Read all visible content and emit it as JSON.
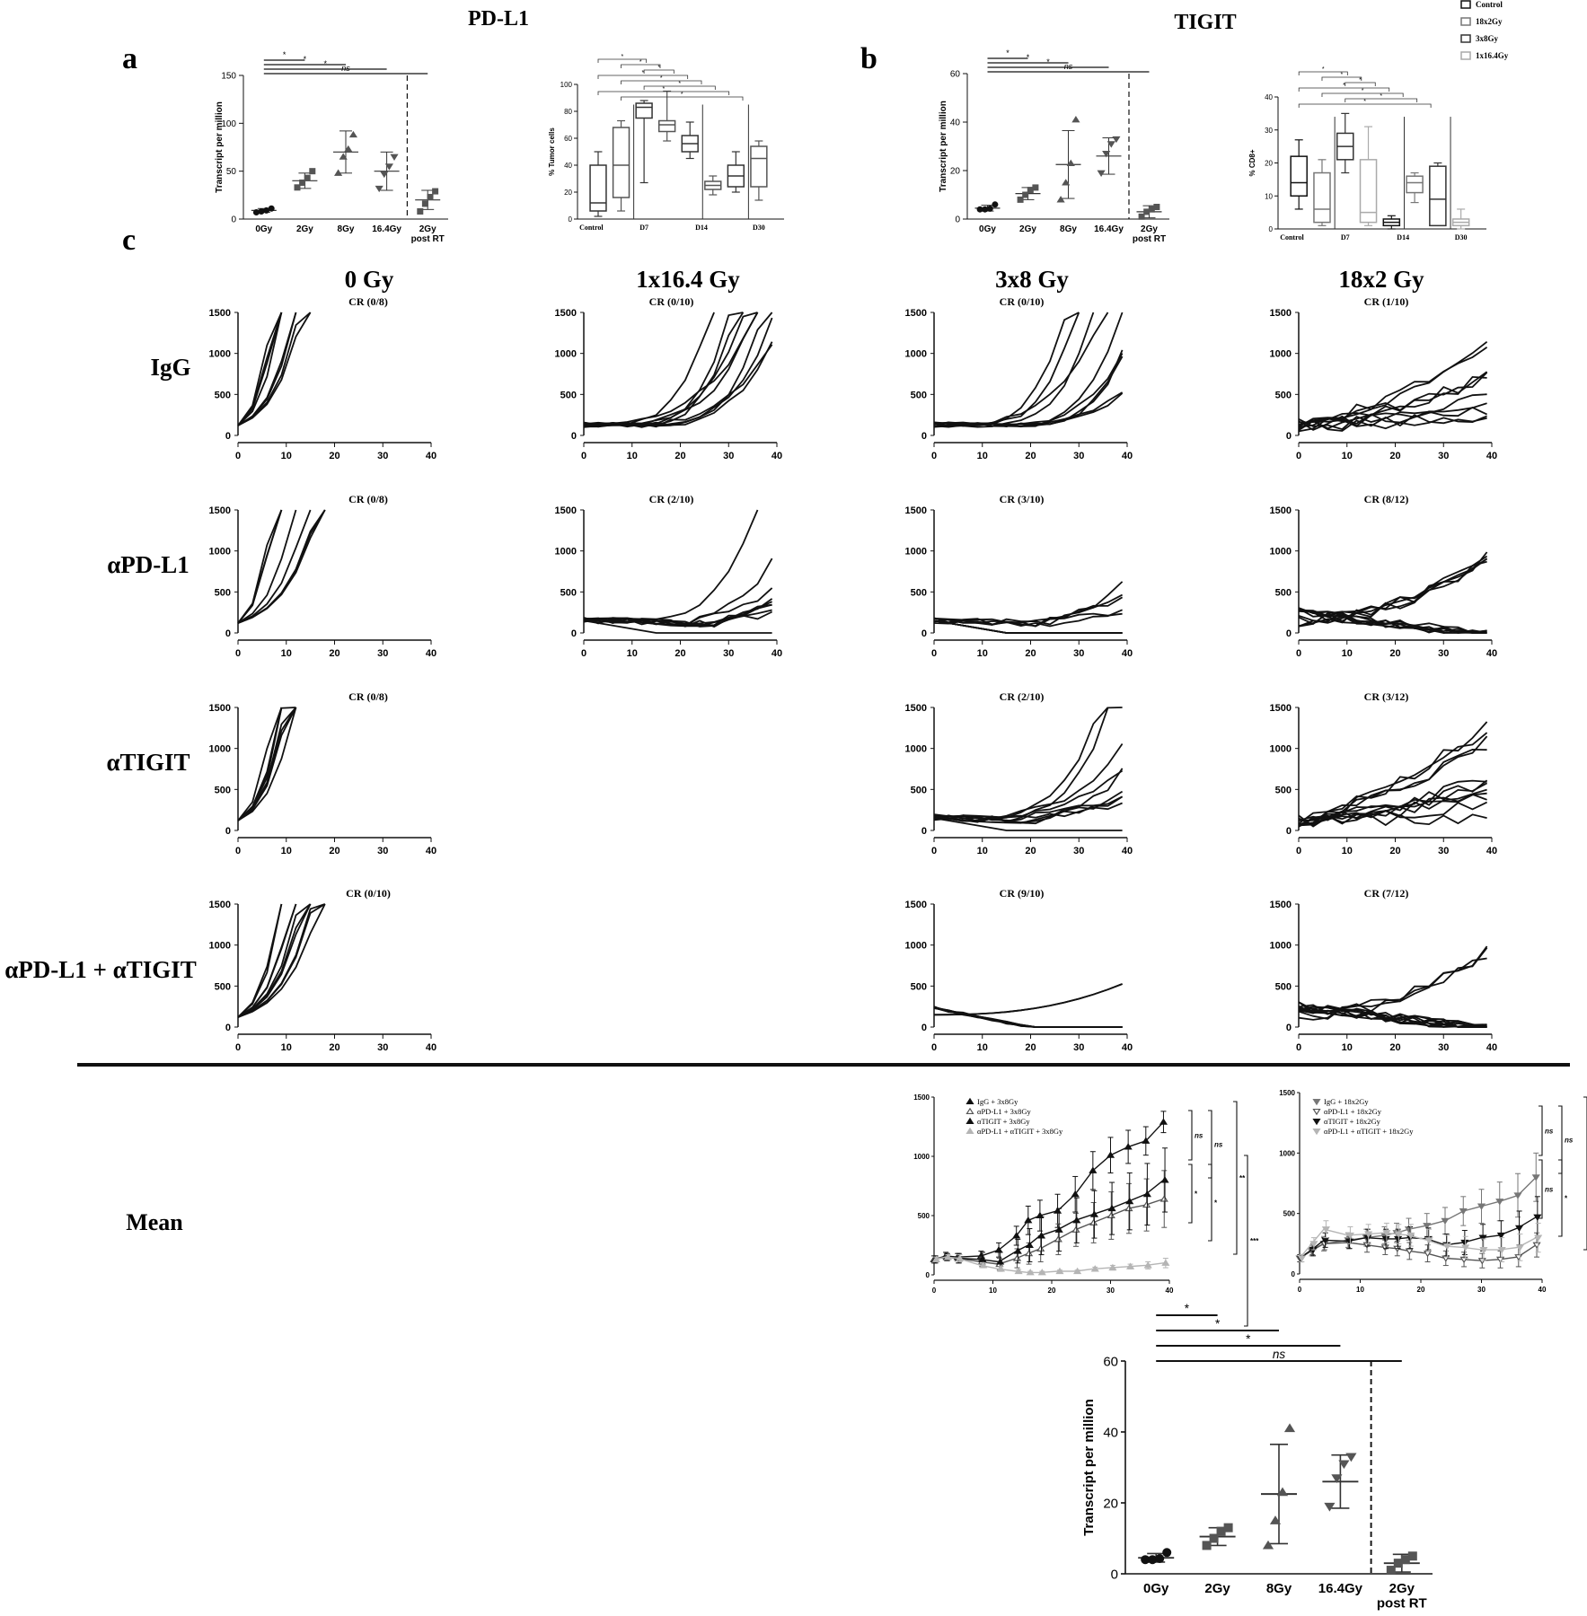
{
  "headers": {
    "pdl1": "PD-L1",
    "tigit": "TIGIT",
    "panel_a": "a",
    "panel_b": "b",
    "panel_c": "c",
    "mean_label": "Mean"
  },
  "colors": {
    "ink": "#111111",
    "dark_gray": "#555555",
    "mid_gray": "#888888",
    "light_gray": "#b5b5b5"
  },
  "chart_data": [
    {
      "id": "a_pdl1_transcript",
      "type": "scatter",
      "ylabel": "Transcript per million",
      "ylim": [
        0,
        150
      ],
      "yticks": [
        "0",
        "50",
        "100",
        "150"
      ],
      "categories": [
        "0Gy",
        "2Gy",
        "8Gy",
        "16.4Gy",
        "2Gy post RT"
      ],
      "means": [
        9,
        40,
        70,
        50,
        20
      ],
      "sd": [
        2,
        8,
        22,
        20,
        10
      ],
      "points": [
        [
          7,
          8,
          9,
          11
        ],
        [
          33,
          38,
          43,
          50
        ],
        [
          48,
          65,
          73,
          88
        ],
        [
          32,
          47,
          55,
          65
        ],
        [
          8,
          16,
          23,
          29
        ]
      ],
      "significance": [
        {
          "from": 0,
          "to": 1,
          "label": "*"
        },
        {
          "from": 0,
          "to": 2,
          "label": "*"
        },
        {
          "from": 0,
          "to": 3,
          "label": "*"
        },
        {
          "from": 0,
          "to": 4,
          "label": "ns"
        }
      ]
    },
    {
      "id": "a_pdl1_tumor_cells",
      "type": "box",
      "ylabel": "% Tumor cells",
      "ylim": [
        0,
        100
      ],
      "yticks": [
        "0",
        "20",
        "40",
        "60",
        "80",
        "100"
      ],
      "group_labels": [
        "Control",
        "D7",
        "D14",
        "D30"
      ],
      "boxes": [
        {
          "min": 2,
          "q1": 6,
          "median": 12,
          "q3": 40,
          "max": 50
        },
        {
          "min": 6,
          "q1": 16,
          "median": 40,
          "q3": 68,
          "max": 73
        },
        {
          "min": 27,
          "q1": 75,
          "median": 83,
          "q3": 86,
          "max": 88
        },
        {
          "min": 58,
          "q1": 65,
          "median": 70,
          "q3": 73,
          "max": 95
        },
        {
          "min": 45,
          "q1": 50,
          "median": 56,
          "q3": 62,
          "max": 72
        },
        {
          "min": 18,
          "q1": 22,
          "median": 25,
          "q3": 28,
          "max": 32
        },
        {
          "min": 20,
          "q1": 24,
          "median": 32,
          "q3": 40,
          "max": 50
        },
        {
          "min": 14,
          "q1": 24,
          "median": 45,
          "q3": 54,
          "max": 58
        }
      ],
      "stars": [
        "*",
        "*",
        "*",
        "*",
        "*",
        "*",
        "*",
        "*"
      ]
    },
    {
      "id": "b_tigit_transcript",
      "type": "scatter",
      "ylabel": "Transcript per million",
      "ylim": [
        0,
        60
      ],
      "yticks": [
        "0",
        "20",
        "40",
        "60"
      ],
      "categories": [
        "0Gy",
        "2Gy",
        "8Gy",
        "16.4Gy",
        "2Gy post RT"
      ],
      "means": [
        4.5,
        10.5,
        22.5,
        26,
        3
      ],
      "sd": [
        1.2,
        2.5,
        14,
        7.5,
        2.5
      ],
      "points": [
        [
          4,
          4,
          4.3,
          6
        ],
        [
          8,
          10,
          12,
          13
        ],
        [
          8,
          15,
          23,
          41
        ],
        [
          19,
          27,
          31,
          33
        ],
        [
          1,
          3,
          4,
          5
        ]
      ],
      "significance": [
        {
          "from": 0,
          "to": 1,
          "label": "*"
        },
        {
          "from": 0,
          "to": 2,
          "label": "*"
        },
        {
          "from": 0,
          "to": 3,
          "label": "*"
        },
        {
          "from": 0,
          "to": 4,
          "label": "ns"
        }
      ]
    },
    {
      "id": "b_tigit_cd8",
      "type": "box",
      "ylabel": "% CD8+",
      "ylim": [
        0,
        40
      ],
      "yticks": [
        "0",
        "10",
        "20",
        "30",
        "40"
      ],
      "group_labels": [
        "Control",
        "D7",
        "D14",
        "D30"
      ],
      "legend": [
        "Control",
        "18x2Gy",
        "3x8Gy",
        "1x16.4Gy"
      ],
      "boxes": [
        {
          "min": 6,
          "q1": 10,
          "median": 14,
          "q3": 22,
          "max": 27
        },
        {
          "min": 1,
          "q1": 2,
          "median": 6,
          "q3": 17,
          "max": 21
        },
        {
          "min": 17,
          "q1": 21,
          "median": 25,
          "q3": 29,
          "max": 35
        },
        {
          "min": 1,
          "q1": 2,
          "median": 5,
          "q3": 21,
          "max": 31
        },
        {
          "min": 0,
          "q1": 1,
          "median": 2,
          "q3": 3,
          "max": 4
        },
        {
          "min": 8,
          "q1": 11,
          "median": 14,
          "q3": 16,
          "max": 17
        },
        {
          "min": 1,
          "q1": 1,
          "median": 9,
          "q3": 19,
          "max": 20
        },
        {
          "min": 0,
          "q1": 1,
          "median": 2,
          "q3": 3,
          "max": 6
        }
      ],
      "stars": [
        "*",
        "*",
        "*",
        "*",
        "*",
        "*",
        "*"
      ]
    },
    {
      "id": "c_tumor_growth_grid",
      "type": "line",
      "column_titles": [
        "0 Gy",
        "1x16.4 Gy",
        "3x8 Gy",
        "18x2 Gy"
      ],
      "row_labels": [
        "IgG",
        "αPD-L1",
        "αTIGIT",
        "αPD-L1 + αTIGIT"
      ],
      "xlim": [
        0,
        40
      ],
      "xticks": [
        "0",
        "10",
        "20",
        "30",
        "40"
      ],
      "ylim": [
        0,
        1500
      ],
      "yticks": [
        "0",
        "500",
        "1000",
        "1500"
      ],
      "panels": [
        {
          "row": 0,
          "col": 0,
          "cr": "CR (0/8)",
          "n": 8,
          "kind": "fast"
        },
        {
          "row": 0,
          "col": 1,
          "cr": "CR (0/10)",
          "n": 10,
          "kind": "grow"
        },
        {
          "row": 0,
          "col": 2,
          "cr": "CR (0/10)",
          "n": 10,
          "kind": "grow"
        },
        {
          "row": 0,
          "col": 3,
          "cr": "CR (1/10)",
          "n": 10,
          "kind": "mixed"
        },
        {
          "row": 1,
          "col": 0,
          "cr": "CR (0/8)",
          "n": 8,
          "kind": "fast"
        },
        {
          "row": 1,
          "col": 1,
          "cr": "CR (2/10)",
          "n": 10,
          "kind": "slow"
        },
        {
          "row": 1,
          "col": 2,
          "cr": "CR (3/10)",
          "n": 10,
          "kind": "slow"
        },
        {
          "row": 1,
          "col": 3,
          "cr": "CR (8/12)",
          "n": 12,
          "kind": "low"
        },
        {
          "row": 2,
          "col": 0,
          "cr": "CR (0/8)",
          "n": 8,
          "kind": "fast"
        },
        {
          "row": 2,
          "col": 2,
          "cr": "CR (2/10)",
          "n": 10,
          "kind": "slow"
        },
        {
          "row": 2,
          "col": 3,
          "cr": "CR (3/12)",
          "n": 12,
          "kind": "mixed"
        },
        {
          "row": 3,
          "col": 0,
          "cr": "CR (0/10)",
          "n": 10,
          "kind": "fast"
        },
        {
          "row": 3,
          "col": 2,
          "cr": "CR (9/10)",
          "n": 10,
          "kind": "decay"
        },
        {
          "row": 3,
          "col": 3,
          "cr": "CR (7/12)",
          "n": 12,
          "kind": "low"
        }
      ]
    },
    {
      "id": "mean_3x8",
      "type": "line",
      "xlim": [
        0,
        40
      ],
      "xticks": [
        "0",
        "10",
        "20",
        "30",
        "40"
      ],
      "ylim": [
        0,
        1500
      ],
      "yticks": [
        "0",
        "500",
        "1000",
        "1500"
      ],
      "x": [
        0,
        2,
        4,
        8,
        11,
        14,
        16,
        18,
        21,
        24,
        27,
        30,
        33,
        36,
        39
      ],
      "series": [
        {
          "name": "IgG + 3x8Gy",
          "color": "#111111",
          "marker": "tri-up",
          "values": [
            130,
            160,
            150,
            160,
            210,
            330,
            460,
            500,
            540,
            680,
            880,
            1010,
            1080,
            1130,
            1290
          ],
          "err": [
            30,
            30,
            30,
            40,
            60,
            80,
            120,
            130,
            140,
            150,
            160,
            150,
            140,
            120,
            90
          ]
        },
        {
          "name": "αPD-L1 + 3x8Gy",
          "color": "#555555",
          "marker": "tri-open",
          "values": [
            130,
            150,
            140,
            110,
            90,
            140,
            180,
            220,
            300,
            380,
            440,
            500,
            560,
            590,
            640
          ],
          "err": [
            30,
            30,
            40,
            40,
            50,
            80,
            90,
            110,
            130,
            140,
            170,
            200,
            210,
            220,
            240
          ]
        },
        {
          "name": "αTIGIT + 3x8Gy",
          "color": "#111111",
          "marker": "tri-up",
          "values": [
            130,
            150,
            140,
            130,
            110,
            200,
            250,
            330,
            380,
            460,
            510,
            560,
            620,
            680,
            800
          ],
          "err": [
            30,
            30,
            40,
            60,
            80,
            100,
            140,
            160,
            180,
            190,
            200,
            220,
            240,
            260,
            270
          ]
        },
        {
          "name": "αPD-L1 + αTIGIT + 3x8Gy",
          "color": "#b5b5b5",
          "marker": "tri-up",
          "values": [
            130,
            150,
            140,
            80,
            50,
            30,
            20,
            20,
            30,
            30,
            50,
            60,
            70,
            80,
            100
          ],
          "err": [
            20,
            20,
            30,
            20,
            20,
            15,
            10,
            10,
            10,
            10,
            15,
            20,
            20,
            30,
            40
          ]
        }
      ],
      "significance": [
        "ns",
        "*",
        "ns",
        "*",
        "**",
        "***"
      ]
    },
    {
      "id": "mean_18x2",
      "type": "line",
      "xlim": [
        0,
        40
      ],
      "xticks": [
        "0",
        "10",
        "20",
        "30",
        "40"
      ],
      "ylim": [
        0,
        1500
      ],
      "yticks": [
        "0",
        "500",
        "1000",
        "1500"
      ],
      "x": [
        0,
        2,
        4,
        8,
        11,
        14,
        16,
        18,
        21,
        24,
        27,
        30,
        33,
        36,
        39
      ],
      "series": [
        {
          "name": "IgG + 18x2Gy",
          "color": "#777777",
          "marker": "tri-down",
          "values": [
            130,
            190,
            250,
            280,
            300,
            320,
            340,
            370,
            400,
            440,
            520,
            560,
            600,
            650,
            800
          ],
          "err": [
            30,
            40,
            60,
            60,
            70,
            70,
            80,
            90,
            100,
            110,
            120,
            140,
            160,
            180,
            200
          ]
        },
        {
          "name": "αPD-L1 + 18x2Gy",
          "color": "#555555",
          "marker": "tri-down-open",
          "values": [
            130,
            200,
            250,
            260,
            240,
            220,
            210,
            190,
            170,
            130,
            120,
            110,
            120,
            140,
            240
          ],
          "err": [
            30,
            40,
            50,
            50,
            60,
            60,
            60,
            70,
            70,
            60,
            60,
            60,
            70,
            80,
            100
          ]
        },
        {
          "name": "αTIGIT + 18x2Gy",
          "color": "#111111",
          "marker": "tri-down",
          "values": [
            130,
            200,
            280,
            270,
            300,
            290,
            290,
            300,
            290,
            240,
            260,
            300,
            320,
            380,
            470
          ],
          "err": [
            30,
            50,
            60,
            60,
            70,
            80,
            80,
            90,
            90,
            90,
            100,
            110,
            120,
            140,
            170
          ]
        },
        {
          "name": "αPD-L1 + αTIGIT + 18x2Gy",
          "color": "#b5b5b5",
          "marker": "tri-down",
          "values": [
            130,
            250,
            370,
            320,
            330,
            340,
            330,
            320,
            280,
            230,
            220,
            200,
            200,
            220,
            300
          ],
          "err": [
            30,
            50,
            70,
            70,
            80,
            80,
            80,
            90,
            90,
            90,
            90,
            90,
            100,
            110,
            120
          ]
        }
      ],
      "significance": [
        "ns",
        "ns",
        "ns",
        "*",
        "*"
      ]
    },
    {
      "id": "tigit_transcript_large",
      "type": "scatter",
      "ylabel": "Transcript per million",
      "ylim": [
        0,
        60
      ],
      "yticks": [
        "0",
        "20",
        "40",
        "60"
      ],
      "categories": [
        "0Gy",
        "2Gy",
        "8Gy",
        "16.4Gy",
        "2Gy post RT"
      ],
      "means": [
        4.5,
        10.5,
        22.5,
        26,
        3
      ],
      "sd": [
        1.2,
        2.5,
        14,
        7.5,
        2.5
      ],
      "points": [
        [
          4,
          4,
          4.3,
          6
        ],
        [
          8,
          10,
          12,
          13
        ],
        [
          8,
          15,
          23,
          41
        ],
        [
          19,
          27,
          31,
          33
        ],
        [
          1,
          3,
          4,
          5
        ]
      ],
      "significance": [
        {
          "from": 0,
          "to": 1,
          "label": "*"
        },
        {
          "from": 0,
          "to": 2,
          "label": "*"
        },
        {
          "from": 0,
          "to": 3,
          "label": "*"
        },
        {
          "from": 0,
          "to": 4,
          "label": "ns"
        }
      ]
    }
  ]
}
